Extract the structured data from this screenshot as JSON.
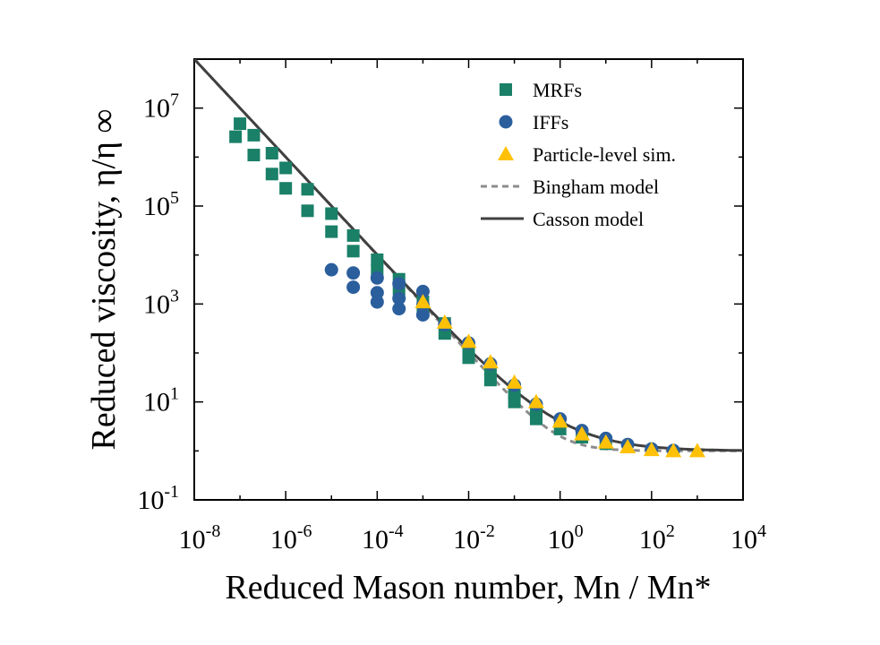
{
  "chart_data": {
    "type": "scatter",
    "xlabel": "Reduced Mason number, Mn / Mn*",
    "ylabel": "Reduced viscosity, η/η ∞",
    "x_scale": "log",
    "y_scale": "log",
    "xlim": [
      1e-08,
      10000.0
    ],
    "ylim": [
      0.1,
      100000000.0
    ],
    "x_ticks": [
      {
        "base": "10",
        "exp": "-8",
        "value": 1e-08
      },
      {
        "base": "10",
        "exp": "-6",
        "value": 1e-06
      },
      {
        "base": "10",
        "exp": "-4",
        "value": 0.0001
      },
      {
        "base": "10",
        "exp": "-2",
        "value": 0.01
      },
      {
        "base": "10",
        "exp": "0",
        "value": 1
      },
      {
        "base": "10",
        "exp": "2",
        "value": 100
      },
      {
        "base": "10",
        "exp": "4",
        "value": 10000
      }
    ],
    "y_ticks": [
      {
        "base": "10",
        "exp": "-1",
        "value": 0.1
      },
      {
        "base": "10",
        "exp": "1",
        "value": 10
      },
      {
        "base": "10",
        "exp": "3",
        "value": 1000
      },
      {
        "base": "10",
        "exp": "5",
        "value": 100000
      },
      {
        "base": "10",
        "exp": "7",
        "value": 10000000
      }
    ],
    "grid": false,
    "legend_position": "top-right",
    "series": [
      {
        "name": "MRFs",
        "marker": "square",
        "color": "#1a8068",
        "points": [
          [
            1e-07,
            4800000.0
          ],
          [
            2e-07,
            2800000.0
          ],
          [
            5e-07,
            1200000.0
          ],
          [
            1e-06,
            600000.0
          ],
          [
            3e-06,
            220000.0
          ],
          [
            1e-05,
            70000.0
          ],
          [
            3e-05,
            25000.0
          ],
          [
            0.0001,
            8000.0
          ],
          [
            0.0003,
            3200.0
          ],
          [
            0.001,
            1100.0
          ],
          [
            0.003,
            400
          ],
          [
            0.01,
            130
          ],
          [
            0.03,
            45
          ],
          [
            0.1,
            15
          ],
          [
            0.3,
            6
          ],
          [
            8e-08,
            2600000.0
          ],
          [
            2e-07,
            1100000.0
          ],
          [
            5e-07,
            450000.0
          ],
          [
            1e-06,
            230000.0
          ],
          [
            3e-06,
            80000.0
          ],
          [
            1e-05,
            30000.0
          ],
          [
            3e-05,
            12000.0
          ],
          [
            0.0001,
            5000.0
          ],
          [
            0.0003,
            2000.0
          ],
          [
            0.001,
            700
          ],
          [
            0.003,
            250
          ],
          [
            0.01,
            80
          ],
          [
            0.03,
            28
          ],
          [
            0.1,
            10
          ],
          [
            0.3,
            4.5
          ],
          [
            1,
            2.8
          ],
          [
            3,
            1.9
          ],
          [
            10,
            1.4
          ]
        ]
      },
      {
        "name": "IFFs",
        "marker": "circle",
        "color": "#2b5e9c",
        "points": [
          [
            1e-05,
            5000.0
          ],
          [
            3e-05,
            4300.0
          ],
          [
            0.0001,
            3400.0
          ],
          [
            0.0003,
            2600.0
          ],
          [
            0.001,
            1800.0
          ],
          [
            3e-05,
            2200.0
          ],
          [
            0.0001,
            1700.0
          ],
          [
            0.0003,
            1300.0
          ],
          [
            0.001,
            950
          ],
          [
            0.0001,
            1100.0
          ],
          [
            0.0003,
            800
          ],
          [
            0.001,
            600
          ],
          [
            0.003,
            380
          ],
          [
            0.01,
            160
          ],
          [
            0.03,
            60
          ],
          [
            0.1,
            22
          ],
          [
            0.3,
            9
          ],
          [
            1,
            4.5
          ],
          [
            3,
            2.6
          ],
          [
            10,
            1.8
          ],
          [
            30,
            1.35
          ],
          [
            100,
            1.1
          ],
          [
            300,
            1.02
          ]
        ]
      },
      {
        "name": "Particle-level sim.",
        "marker": "triangle",
        "color": "#ffc107",
        "points": [
          [
            0.001,
            1100.0
          ],
          [
            0.003,
            420
          ],
          [
            0.01,
            170
          ],
          [
            0.03,
            65
          ],
          [
            0.1,
            25
          ],
          [
            0.3,
            10
          ],
          [
            1,
            4
          ],
          [
            3,
            2.2
          ],
          [
            10,
            1.5
          ],
          [
            30,
            1.2
          ],
          [
            100,
            1.05
          ],
          [
            300,
            1.0
          ],
          [
            1000,
            1.0
          ]
        ]
      },
      {
        "name": "Bingham model",
        "style": "dashed-line",
        "color": "#8c8c8c",
        "eta_inf": 1,
        "equation": "1 + 1/x"
      },
      {
        "name": "Casson model",
        "style": "solid-line",
        "color": "#404040",
        "eta_inf": 1,
        "equation": "(1 + 1/sqrt(x))^2"
      }
    ]
  }
}
